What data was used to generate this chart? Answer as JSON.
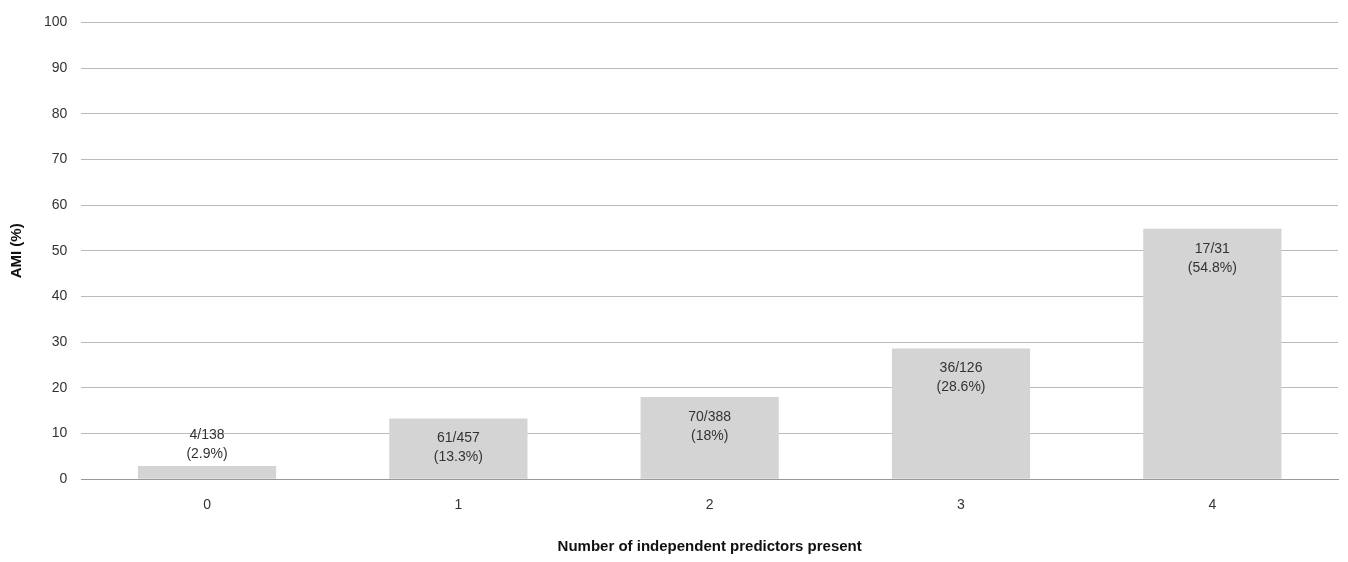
{
  "chart_data": {
    "type": "bar",
    "xlabel": "Number of independent predictors present",
    "ylabel": "AMI (%)",
    "categories": [
      "0",
      "1",
      "2",
      "3",
      "4"
    ],
    "values": [
      2.9,
      13.3,
      18,
      28.6,
      54.8
    ],
    "value_labels": [
      "4/138\n(2.9%)",
      "61/457\n(13.3%)",
      "70/388\n(18%)",
      "36/126\n(28.6%)",
      "17/31\n(54.8%)"
    ],
    "color": "#d4d4d4",
    "ylim": [
      0,
      100
    ],
    "yticks": [
      0,
      10,
      20,
      30,
      40,
      50,
      60,
      70,
      80,
      90,
      100
    ],
    "grid": "y",
    "legend": false
  }
}
